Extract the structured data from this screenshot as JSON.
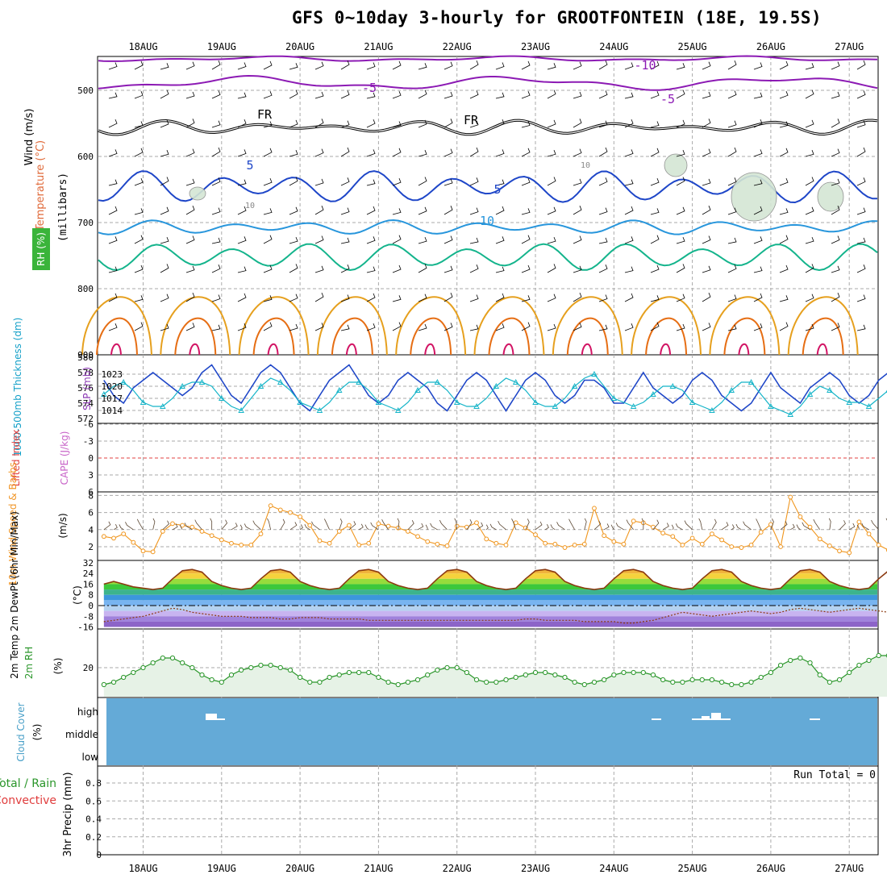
{
  "title": "GFS 0~10day 3-hourly for GROOTFONTEIN (18E, 19.5S)",
  "dates": [
    "18AUG",
    "19AUG",
    "20AUG",
    "21AUG",
    "22AUG",
    "23AUG",
    "24AUG",
    "25AUG",
    "26AUG",
    "27AUG"
  ],
  "colors": {
    "grid": "#aaaaaa",
    "purple": "#8c1ab4",
    "blue": "#1e46c8",
    "lightblue": "#2896dc",
    "teal": "#14b48c",
    "gold": "#e6a01e",
    "orange": "#e66e14",
    "magenta": "#d21464",
    "cyan": "#14b4c8",
    "wind_orange": "#f0961e",
    "rh_green": "#2a962a",
    "cloud_blue": "#64aad7"
  },
  "panels": {
    "upper_air": {
      "ylabel_parts": [
        "Wind (m/s)",
        "Temperature (°C)",
        "RH (%)"
      ],
      "ylabel_units": "(millibars)",
      "ticks": [
        "500",
        "600",
        "700",
        "800",
        "900"
      ],
      "contour_labels": [
        {
          "text": "-10",
          "color": "purple"
        },
        {
          "text": "-5",
          "color": "purple"
        },
        {
          "text": "-5",
          "color": "purple"
        },
        {
          "text": "FR",
          "color": "black"
        },
        {
          "text": "FR",
          "color": "black"
        },
        {
          "text": "5",
          "color": "blue"
        },
        {
          "text": "5",
          "color": "blue"
        },
        {
          "text": "10",
          "color": "lightblue"
        },
        {
          "text": "10",
          "color": "grey"
        },
        {
          "text": "10",
          "color": "grey"
        }
      ]
    },
    "slp": {
      "ylabel_left": "1000-500mb Thickness (dm)",
      "ylabel_right": "SLP (mb)",
      "left_ticks": [
        "580",
        "578",
        "576",
        "574",
        "572"
      ],
      "right_ticks": [
        "1023",
        "1020",
        "1017",
        "1014"
      ]
    },
    "li": {
      "ylabel_left": "Lifted Index",
      "ylabel_right": "CAPE (J/kg)",
      "ticks": [
        "-6",
        "-3",
        "0",
        "3",
        "6"
      ]
    },
    "wind10": {
      "ylabel": "10m Wind Speed & Barbs",
      "units": "(m/s)",
      "ticks": [
        "8",
        "6",
        "4",
        "2"
      ]
    },
    "temp2m": {
      "ylabel": "2m Temp 2m DewPt (6hr Min/Max)",
      "units": "(°C)",
      "ticks": [
        "32",
        "24",
        "16",
        "8",
        "0",
        "-8",
        "-16"
      ]
    },
    "rh2m": {
      "ylabel": "2m RH",
      "units": "(%)",
      "ticks": [
        "20"
      ]
    },
    "cloud": {
      "ylabel": "Cloud Cover",
      "units": "(%)",
      "levels": [
        "high",
        "middle",
        "low"
      ]
    },
    "precip": {
      "ylabel_left": "Total / Rain",
      "ylabel_left2": "Convective",
      "ylabel_right": "3hr Precip (mm)",
      "ticks": [
        "0.8",
        "0.6",
        "0.4",
        "0.2",
        "0"
      ],
      "run_total": "Run Total = 0"
    }
  },
  "chart_data": [
    {
      "type": "line",
      "name": "1000-500mb thickness and SLP",
      "x_start": "17AUG 12Z",
      "x_step_hours": 3,
      "series": [
        {
          "name": "SLP (mb)",
          "color": "cyan",
          "values": [
            1018,
            1020,
            1021,
            1019,
            1016,
            1015,
            1015,
            1017,
            1020,
            1021,
            1021,
            1020,
            1017,
            1015,
            1014,
            1017,
            1020,
            1022,
            1021,
            1019,
            1016,
            1015,
            1014,
            1016,
            1019,
            1021,
            1021,
            1019,
            1016,
            1015,
            1014,
            1016,
            1019,
            1021,
            1021,
            1019,
            1016,
            1015,
            1015,
            1017,
            1020,
            1022,
            1021,
            1019,
            1016,
            1015,
            1015,
            1017,
            1020,
            1022,
            1023,
            1020,
            1017,
            1016,
            1015,
            1016,
            1018,
            1020,
            1020,
            1019,
            1016,
            1015,
            1014,
            1016,
            1019,
            1021,
            1021,
            1018,
            1015,
            1014,
            1013,
            1015,
            1018,
            1020,
            1019,
            1017,
            1016,
            1016,
            1015,
            1017,
            1019,
            1020,
            1019,
            1017,
            1015,
            1014,
            1015,
            1017,
            1019,
            1021,
            1020,
            1018,
            1016,
            1015,
            1014,
            1014
          ]
        },
        {
          "name": "1000-500mb thickness (dm)",
          "color": "blue",
          "values": [
            577,
            575,
            574,
            576,
            577,
            578,
            577,
            576,
            575,
            576,
            578,
            579,
            577,
            575,
            574,
            576,
            578,
            579,
            578,
            576,
            574,
            573,
            575,
            577,
            578,
            579,
            577,
            575,
            574,
            575,
            577,
            578,
            577,
            576,
            574,
            573,
            575,
            577,
            578,
            577,
            575,
            573,
            575,
            577,
            578,
            577,
            575,
            574,
            575,
            577,
            577,
            576,
            574,
            574,
            576,
            578,
            576,
            575,
            574,
            575,
            577,
            578,
            577,
            575,
            574,
            573,
            574,
            576,
            578,
            576,
            575,
            574,
            576,
            577,
            578,
            577,
            575,
            574,
            575,
            577,
            578,
            576,
            575,
            574,
            575,
            576,
            577,
            575,
            574,
            575,
            576,
            577,
            576,
            575,
            576,
            577
          ]
        }
      ]
    },
    {
      "type": "line",
      "name": "10m wind speed",
      "ylabel": "(m/s)",
      "ylim": [
        0.8,
        8
      ],
      "x_start": "17AUG 12Z",
      "x_step_hours": 3,
      "series": [
        {
          "name": "10m Wind Speed",
          "color": "wind_orange",
          "values": [
            3.2,
            3.0,
            3.5,
            2.5,
            1.5,
            1.4,
            3.8,
            4.7,
            4.5,
            4.3,
            3.8,
            3.3,
            2.8,
            2.4,
            2.2,
            2.2,
            3.5,
            6.8,
            6.3,
            6.0,
            5.5,
            4.5,
            2.7,
            2.4,
            3.8,
            4.5,
            2.2,
            2.4,
            4.7,
            4.4,
            4.2,
            3.8,
            3.2,
            2.6,
            2.3,
            2.1,
            4.4,
            4.3,
            4.8,
            2.9,
            2.4,
            2.2,
            4.8,
            4.2,
            3.4,
            2.4,
            2.3,
            1.9,
            2.2,
            2.3,
            6.5,
            3.3,
            2.6,
            2.3,
            5.0,
            4.8,
            4.3,
            3.6,
            3.2,
            2.2,
            3.0,
            2.3,
            3.5,
            2.8,
            2.0,
            1.9,
            2.2,
            3.7,
            4.6,
            2.0,
            7.8,
            5.5,
            4.3,
            2.9,
            2.1,
            1.5,
            1.3,
            4.9,
            3.5,
            2.2,
            1.6,
            2.2,
            3.3,
            4.6,
            4.0,
            2.8,
            1.6,
            2.3,
            2.9,
            3.7,
            5.6,
            4.4,
            3.8,
            3.6,
            3.4,
            2.4
          ]
        }
      ]
    },
    {
      "type": "area",
      "name": "2m temperature and dew point",
      "ylabel": "(°C)",
      "ylim": [
        -16,
        32
      ],
      "x_start": "17AUG 12Z",
      "x_step_hours": 3,
      "series": [
        {
          "name": "2m Temp",
          "color": "#8b3a10",
          "values": [
            16,
            18,
            16,
            14,
            13,
            12,
            13,
            20,
            26,
            27,
            25,
            18,
            15,
            13,
            12,
            13,
            20,
            26,
            27,
            25,
            18,
            15,
            13,
            12,
            13,
            20,
            26,
            27,
            25,
            18,
            15,
            13,
            12,
            13,
            20,
            26,
            27,
            25,
            18,
            15,
            13,
            12,
            13,
            20,
            26,
            27,
            25,
            18,
            15,
            13,
            12,
            13,
            20,
            26,
            27,
            25,
            18,
            15,
            13,
            12,
            13,
            20,
            26,
            27,
            25,
            18,
            15,
            13,
            12,
            13,
            20,
            26,
            27,
            25,
            18,
            15,
            13,
            12,
            13,
            20,
            26,
            27,
            25,
            18,
            15,
            13,
            12,
            13,
            20,
            26,
            27,
            25,
            18,
            16,
            15,
            16
          ]
        },
        {
          "name": "2m DewPt",
          "color": "#8b3a10",
          "values": [
            -12,
            -11,
            -10,
            -9,
            -8,
            -6,
            -4,
            -2,
            -3,
            -5,
            -6,
            -7,
            -8,
            -8,
            -8,
            -9,
            -9,
            -9,
            -10,
            -10,
            -9,
            -9,
            -9,
            -10,
            -10,
            -10,
            -10,
            -11,
            -11,
            -11,
            -11,
            -11,
            -11,
            -11,
            -11,
            -11,
            -11,
            -11,
            -11,
            -11,
            -11,
            -11,
            -11,
            -10,
            -10,
            -11,
            -11,
            -11,
            -11,
            -12,
            -12,
            -12,
            -12,
            -13,
            -13,
            -12,
            -11,
            -9,
            -7,
            -5,
            -6,
            -7,
            -8,
            -7,
            -6,
            -5,
            -4,
            -5,
            -6,
            -5,
            -3,
            -2,
            -3,
            -4,
            -5,
            -4,
            -3,
            -2,
            -3,
            -4,
            -5,
            -4,
            -3,
            -2,
            -3,
            -4,
            -5,
            -4,
            -3,
            -2,
            -3,
            -4,
            -5,
            -5,
            -4,
            -3
          ]
        }
      ]
    },
    {
      "type": "area",
      "name": "2m relative humidity",
      "ylabel": "(%)",
      "x_start": "17AUG 12Z",
      "x_step_hours": 3,
      "series": [
        {
          "name": "2m RH",
          "color": "rh_green",
          "values": [
            13,
            14,
            16,
            18,
            20,
            22,
            24,
            24,
            22,
            20,
            17,
            15,
            14,
            17,
            19,
            20,
            21,
            21,
            20,
            19,
            16,
            14,
            14,
            16,
            17,
            18,
            18,
            18,
            16,
            14,
            13,
            14,
            15,
            17,
            19,
            20,
            20,
            18,
            15,
            14,
            14,
            15,
            16,
            17,
            18,
            18,
            17,
            16,
            14,
            13,
            14,
            15,
            17,
            18,
            18,
            18,
            17,
            15,
            14,
            14,
            15,
            15,
            15,
            14,
            13,
            13,
            14,
            16,
            18,
            21,
            23,
            24,
            22,
            17,
            14,
            15,
            18,
            21,
            23,
            25,
            25,
            24,
            21,
            18,
            16,
            17,
            19,
            21,
            23,
            24,
            21,
            18,
            16,
            15,
            17,
            20
          ]
        }
      ]
    }
  ]
}
